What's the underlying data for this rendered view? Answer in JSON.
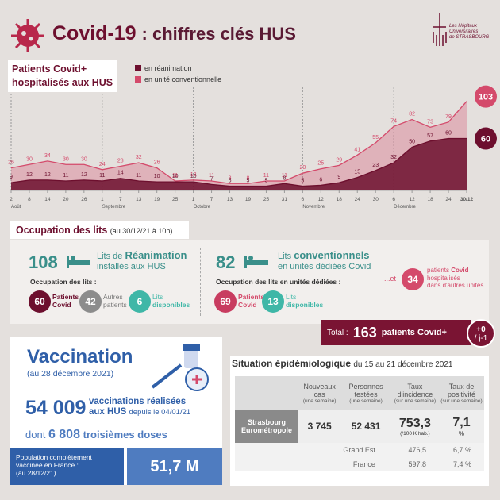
{
  "header": {
    "title_a": "Covid-19",
    "title_b": ": chiffres clés HUS",
    "logo_a": "Les Hôpitaux",
    "logo_b": "Universitaires",
    "logo_c": "de STRASBOURG"
  },
  "chart_data": {
    "type": "area",
    "title_a": "Patients Covid+",
    "title_b": "hospitalisés aux HUS",
    "categories": [
      "2",
      "8",
      "14",
      "20",
      "26",
      "1",
      "7",
      "13",
      "19",
      "25",
      "1",
      "7",
      "13",
      "19",
      "25",
      "31",
      "6",
      "12",
      "18",
      "24",
      "30",
      "6",
      "12",
      "18",
      "24",
      "30/12"
    ],
    "months": [
      "Août",
      null,
      null,
      null,
      null,
      "Septembre",
      null,
      null,
      null,
      null,
      "Octobre",
      null,
      null,
      null,
      null,
      null,
      "Novembre",
      null,
      null,
      null,
      null,
      "Décembre",
      null,
      null,
      null,
      null
    ],
    "series": [
      {
        "name": "en unité conventionnelle",
        "color": "#d44a6b",
        "values": [
          26,
          30,
          34,
          30,
          30,
          24,
          28,
          32,
          26,
          11,
          12,
          11,
          8,
          8,
          11,
          11,
          20,
          25,
          29,
          41,
          55,
          74,
          82,
          73,
          79,
          103
        ]
      },
      {
        "name": "en réanimation",
        "color": "#6d0f2e",
        "values": [
          9,
          12,
          12,
          11,
          12,
          11,
          14,
          11,
          10,
          10,
          10,
          7,
          5,
          5,
          5,
          8,
          5,
          6,
          9,
          15,
          23,
          32,
          50,
          57,
          60,
          60
        ]
      }
    ],
    "ylim": [
      0,
      110
    ]
  },
  "occupation": {
    "title": "Occupation des lits",
    "subtitle": "(au 30/12/21 à 10h)",
    "rea": {
      "number": "108",
      "text_a": "Lits de",
      "text_b": "Réanimation",
      "text_c": "installés aux HUS",
      "label": "Occupation des lits :",
      "items": [
        {
          "value": "60",
          "label_a": "Patients",
          "label_b": "Covid"
        },
        {
          "value": "42",
          "label_a": "Autres",
          "label_b": "patients"
        },
        {
          "value": "6",
          "label_a": "Lits",
          "label_b": "disponibles"
        }
      ]
    },
    "conv": {
      "number": "82",
      "text_a": "Lits",
      "text_b": "conventionnels",
      "text_c": "en unités dédiées Covid",
      "label": "Occupation des lits en unités dédiées :",
      "items": [
        {
          "value": "69",
          "label_a": "Patients",
          "label_b": "Covid"
        },
        {
          "value": "13",
          "label_a": "Lits",
          "label_b": "disponibles"
        }
      ]
    },
    "other": {
      "prefix": "...et",
      "value": "34",
      "text_a": "patients",
      "text_b": "Covid",
      "text_c": "hospitalisés",
      "text_d": "dans d'autres unités"
    },
    "total": {
      "label": "Total :",
      "value": "163",
      "text": "patients Covid+",
      "delta": "+0",
      "delta_unit": "/ j-1"
    }
  },
  "vaccination": {
    "title": "Vaccination",
    "date": "(au 28 décembre 2021)",
    "count": "54 009",
    "count_a": "vaccinations réalisées",
    "count_b": "aux HUS",
    "count_c": "depuis le 04/01/21",
    "third_prefix": "dont",
    "third": "6 808",
    "third_text": "troisièmes doses",
    "france_label": "Population complètement vaccinée en France :",
    "france_date": "(au 28/12/21)",
    "france_value": "51,7 M"
  },
  "situation": {
    "title": "Situation épidémiologique",
    "period": "du 15 au 21 décembre 2021",
    "columns": [
      [
        "Nouveaux cas",
        "(une semaine)"
      ],
      [
        "Personnes testées",
        "(une semaine)"
      ],
      [
        "Taux d'incidence",
        "(sur une semaine)"
      ],
      [
        "Taux de positivité",
        "(sur une semaine)"
      ]
    ],
    "rows": [
      {
        "name": "Strasbourg Eurométropole",
        "cells": [
          "3 745",
          "52 431",
          "753,3",
          "7,1"
        ],
        "incidence_unit": "(/100 K hab.)",
        "positivity_unit": "%"
      },
      {
        "name": "Grand Est",
        "cells": [
          "476,5",
          "6,7 %"
        ]
      },
      {
        "name": "France",
        "cells": [
          "597,8",
          "7,4 %"
        ]
      }
    ]
  }
}
